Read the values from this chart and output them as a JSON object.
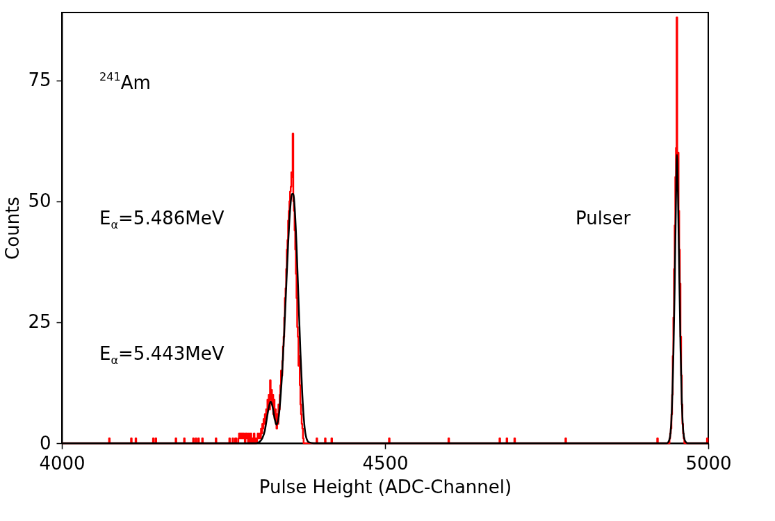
{
  "chart_data": {
    "type": "step",
    "xlabel": "Pulse Height (ADC-Channel)",
    "ylabel": "Counts",
    "xlim": [
      4000,
      5000
    ],
    "xticks": [
      4000,
      4500,
      5000
    ],
    "ylim": [
      0,
      89
    ],
    "yticks": [
      0,
      25,
      50,
      75
    ],
    "grid": false,
    "marker": "none",
    "annotations": [
      "$^{241}$Am",
      "E$_{α}$=5.486MeV",
      "E$_{α}$=5.443MeV",
      "Pulser"
    ],
    "series": [
      {
        "color": "#ff0000",
        "x": [
          4000,
          4073,
          4074,
          4107,
          4108,
          4114,
          4115,
          4141,
          4142,
          4145,
          4146,
          4176,
          4177,
          4189,
          4190,
          4203,
          4204,
          4207,
          4208,
          4211,
          4212,
          4217,
          4218,
          4238,
          4239,
          4259,
          4260,
          4264,
          4265,
          4268,
          4269,
          4270,
          4273,
          4274,
          4275,
          4276,
          4277,
          4278,
          4279,
          4280,
          4281,
          4282,
          4283,
          4284,
          4285,
          4286,
          4287,
          4288,
          4289,
          4290,
          4291,
          4292,
          4293,
          4294,
          4295,
          4296,
          4297,
          4298,
          4299,
          4300,
          4301,
          4302,
          4303,
          4304,
          4305,
          4306,
          4307,
          4308,
          4309,
          4310,
          4311,
          4312,
          4313,
          4314,
          4315,
          4316,
          4317,
          4318,
          4319,
          4320,
          4321,
          4322,
          4323,
          4324,
          4325,
          4326,
          4327,
          4328,
          4329,
          4330,
          4331,
          4332,
          4333,
          4334,
          4335,
          4336,
          4337,
          4338,
          4339,
          4340,
          4341,
          4342,
          4343,
          4344,
          4345,
          4346,
          4347,
          4348,
          4349,
          4350,
          4351,
          4352,
          4353,
          4354,
          4355,
          4356,
          4357,
          4358,
          4359,
          4360,
          4361,
          4362,
          4363,
          4364,
          4365,
          4366,
          4367,
          4368,
          4369,
          4370,
          4371,
          4372,
          4373,
          4374,
          4394,
          4395,
          4407,
          4408,
          4417,
          4418,
          4506,
          4507,
          4598,
          4599,
          4677,
          4678,
          4688,
          4689,
          4700,
          4701,
          4779,
          4780,
          4921,
          4922,
          4940,
          4941,
          4942,
          4943,
          4944,
          4945,
          4946,
          4947,
          4948,
          4949,
          4950,
          4951,
          4952,
          4953,
          4954,
          4955,
          4956,
          4957,
          4958,
          4959,
          4960,
          4961,
          4962,
          4963,
          4998,
          4999,
          5000
        ],
        "values": [
          0,
          1,
          0,
          1,
          0,
          1,
          0,
          1,
          0,
          1,
          0,
          1,
          0,
          1,
          0,
          1,
          0,
          1,
          0,
          1,
          0,
          1,
          0,
          1,
          0,
          1,
          0,
          1,
          0,
          1,
          1,
          0,
          1,
          2,
          1,
          2,
          1,
          2,
          2,
          1,
          2,
          1,
          0,
          2,
          1,
          2,
          1,
          0,
          2,
          1,
          0,
          2,
          1,
          0,
          1,
          0,
          2,
          1,
          0,
          1,
          0,
          1,
          2,
          1,
          1,
          2,
          1,
          3,
          2,
          4,
          3,
          5,
          4,
          6,
          5,
          7,
          6,
          9,
          8,
          10,
          7,
          13,
          9,
          11,
          8,
          10,
          6,
          9,
          5,
          7,
          4,
          3,
          6,
          4,
          8,
          7,
          10,
          12,
          15,
          14,
          17,
          20,
          22,
          26,
          30,
          32,
          36,
          40,
          42,
          46,
          48,
          50,
          52,
          53,
          56,
          55,
          64,
          50,
          48,
          44,
          40,
          35,
          30,
          24,
          22,
          16,
          18,
          12,
          8,
          6,
          4,
          3,
          1,
          0,
          1,
          0,
          1,
          0,
          1,
          0,
          1,
          0,
          1,
          0,
          1,
          0,
          1,
          0,
          1,
          0,
          1,
          0,
          1,
          0,
          1,
          2,
          3,
          6,
          10,
          18,
          26,
          36,
          45,
          55,
          61,
          88,
          58,
          60,
          48,
          40,
          33,
          22,
          14,
          8,
          4,
          2,
          1,
          0,
          1,
          0,
          0
        ]
      },
      {
        "type": "line",
        "color": "#000000",
        "x": [
          4000,
          4300,
          4305,
          4310,
          4314,
          4317,
          4320,
          4323,
          4326,
          4329,
          4332,
          4335,
          4338,
          4341,
          4344,
          4347,
          4350,
          4353,
          4356,
          4358,
          4360,
          4363,
          4366,
          4369,
          4372,
          4375,
          4378,
          4382,
          4390,
          4936,
          4940,
          4943,
          4946,
          4948,
          4950,
          4951.5,
          4953,
          4955,
          4957,
          4959,
          4961,
          4964,
          4968,
          5000
        ],
        "values": [
          0,
          0,
          0.2,
          1,
          2.6,
          5,
          7.3,
          8.6,
          7.5,
          5.2,
          3.8,
          5,
          9,
          15,
          23,
          32,
          41,
          48,
          51.5,
          51.5,
          49,
          41,
          30,
          19,
          10,
          4,
          1.2,
          0.2,
          0,
          0,
          0.8,
          5,
          18,
          32,
          50,
          59.6,
          52,
          36,
          20,
          9,
          3,
          0.5,
          0,
          0
        ]
      }
    ]
  }
}
